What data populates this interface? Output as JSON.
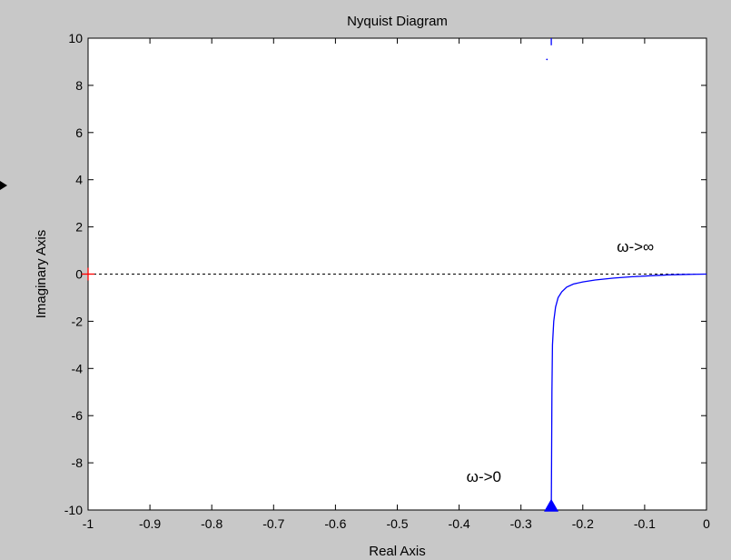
{
  "chart_data": {
    "type": "line",
    "title": "Nyquist Diagram",
    "xlabel": "Real Axis",
    "ylabel": "Imaginary Axis",
    "xlim": [
      -1,
      0
    ],
    "ylim": [
      -10,
      10
    ],
    "xticks": [
      -1,
      -0.9,
      -0.8,
      -0.7,
      -0.6,
      -0.5,
      -0.4,
      -0.3,
      -0.2,
      -0.1,
      0
    ],
    "xtick_labels": [
      "-1",
      "-0.9",
      "-0.8",
      "-0.7",
      "-0.6",
      "-0.5",
      "-0.4",
      "-0.3",
      "-0.2",
      "-0.1",
      "0"
    ],
    "yticks": [
      -10,
      -8,
      -6,
      -4,
      -2,
      0,
      2,
      4,
      6,
      8,
      10
    ],
    "ytick_labels": [
      "-10",
      "-8",
      "-6",
      "-4",
      "-2",
      "0",
      "2",
      "4",
      "6",
      "8",
      "10"
    ],
    "grid": false,
    "series": [
      {
        "color": "#0000ff",
        "x": [
          -0.251,
          -0.2505,
          -0.25,
          -0.249,
          -0.247,
          -0.244,
          -0.24,
          -0.234,
          -0.226,
          -0.215,
          -0.2,
          -0.18,
          -0.15,
          -0.12,
          -0.09,
          -0.06,
          -0.03,
          0
        ],
        "y": [
          -10,
          -8,
          -5,
          -3,
          -2,
          -1.4,
          -1,
          -0.75,
          -0.55,
          -0.42,
          -0.33,
          -0.25,
          -0.17,
          -0.11,
          -0.07,
          -0.03,
          -0.01,
          0
        ]
      },
      {
        "color": "#0000ff",
        "x": [
          -0.251,
          -0.251
        ],
        "y": [
          10,
          9.7
        ]
      }
    ],
    "critical_point": {
      "x": -1,
      "y": 0,
      "marker": "+",
      "color": "#ff0000"
    },
    "zero_line": {
      "y": 0,
      "style": "dashed",
      "color": "#000000"
    },
    "arrow": {
      "x": -0.251,
      "y": -9.8,
      "direction": "up",
      "color": "#0000ff"
    },
    "annotations": [
      {
        "text": "ω->∞",
        "x": -0.115,
        "y": 0.95
      },
      {
        "text": "ω->0",
        "x": -0.36,
        "y": -8.8
      }
    ]
  }
}
